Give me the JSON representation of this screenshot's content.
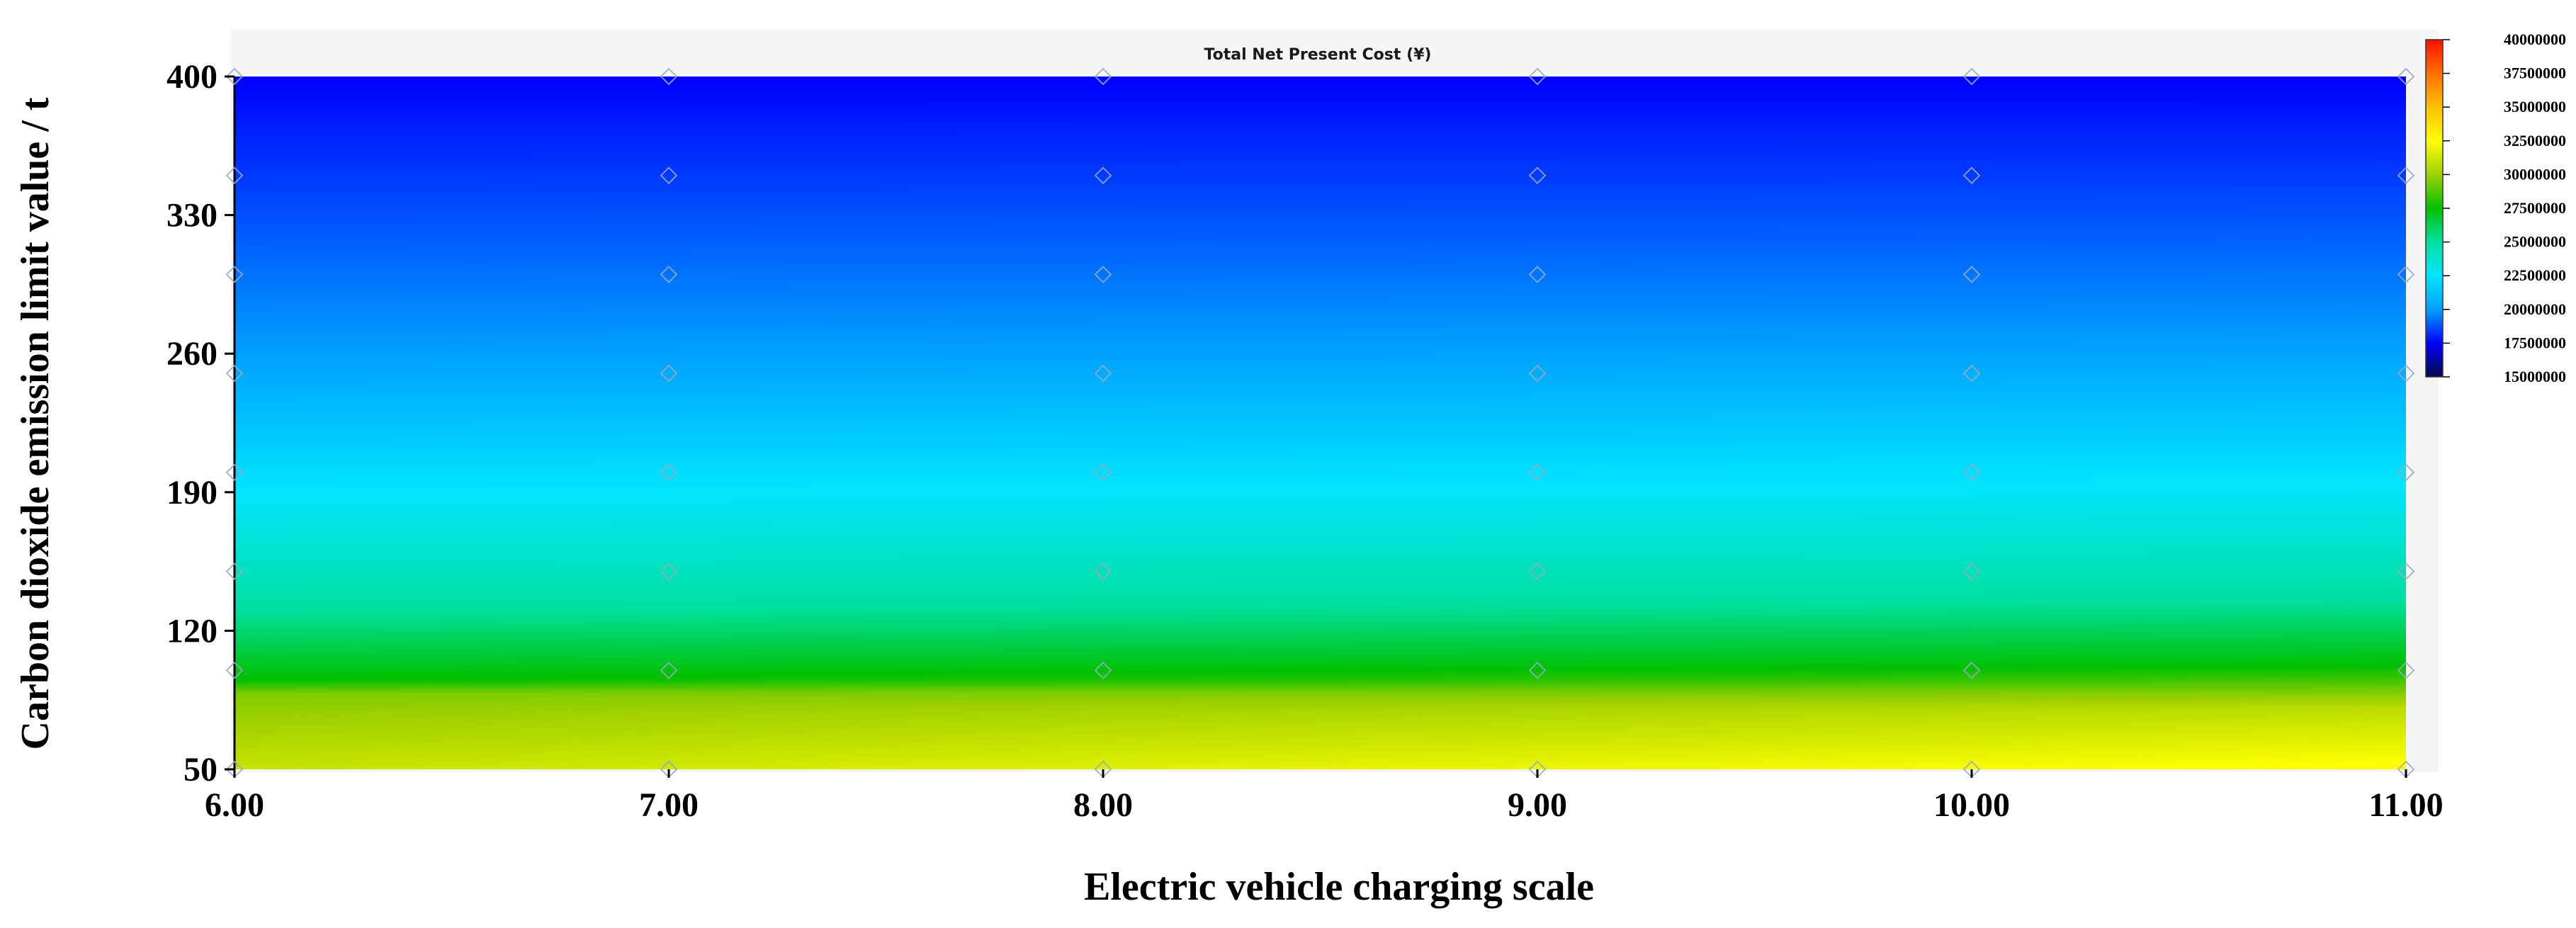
{
  "chart_data": {
    "type": "heatmap",
    "title": "Total Net Present Cost (¥)",
    "xlabel": "Electric vehicle charging scale",
    "ylabel": "Carbon dioxide emission limit value / t",
    "x_ticks": [
      "6.00",
      "7.00",
      "8.00",
      "9.00",
      "10.00",
      "11.00"
    ],
    "y_ticks": [
      "50",
      "120",
      "190",
      "260",
      "330",
      "400"
    ],
    "xlim": [
      6,
      11
    ],
    "ylim": [
      50,
      400
    ],
    "colorbar_ticks": [
      "15000000",
      "17500000",
      "20000000",
      "22500000",
      "25000000",
      "27500000",
      "30000000",
      "32500000",
      "35000000",
      "37500000",
      "40000000"
    ],
    "colorbar_range": [
      15000000,
      40000000
    ],
    "colorbar_colors": [
      "#0a0a4a",
      "#0000ff",
      "#00a0ff",
      "#00e5ff",
      "#00e0a0",
      "#00c000",
      "#9ed000",
      "#ffff00",
      "#ffc000",
      "#ff7000",
      "#ff1000"
    ],
    "sample_points_x": [
      6,
      7,
      8,
      9,
      10,
      11
    ],
    "sample_points_y": [
      50,
      100,
      150,
      200,
      250,
      300,
      350,
      400
    ],
    "z_profile_left": [
      {
        "y": 50,
        "v": 31000000
      },
      {
        "y": 88,
        "v": 29500000
      },
      {
        "y": 95,
        "v": 27500000
      },
      {
        "y": 130,
        "v": 25000000
      },
      {
        "y": 190,
        "v": 22500000
      },
      {
        "y": 260,
        "v": 20000000
      },
      {
        "y": 400,
        "v": 17500000
      }
    ],
    "z_profile_right": [
      {
        "y": 50,
        "v": 32700000
      },
      {
        "y": 80,
        "v": 30800000
      },
      {
        "y": 102,
        "v": 27500000
      },
      {
        "y": 135,
        "v": 25000000
      },
      {
        "y": 195,
        "v": 22500000
      },
      {
        "y": 265,
        "v": 20000000
      },
      {
        "y": 400,
        "v": 17500000
      }
    ]
  }
}
